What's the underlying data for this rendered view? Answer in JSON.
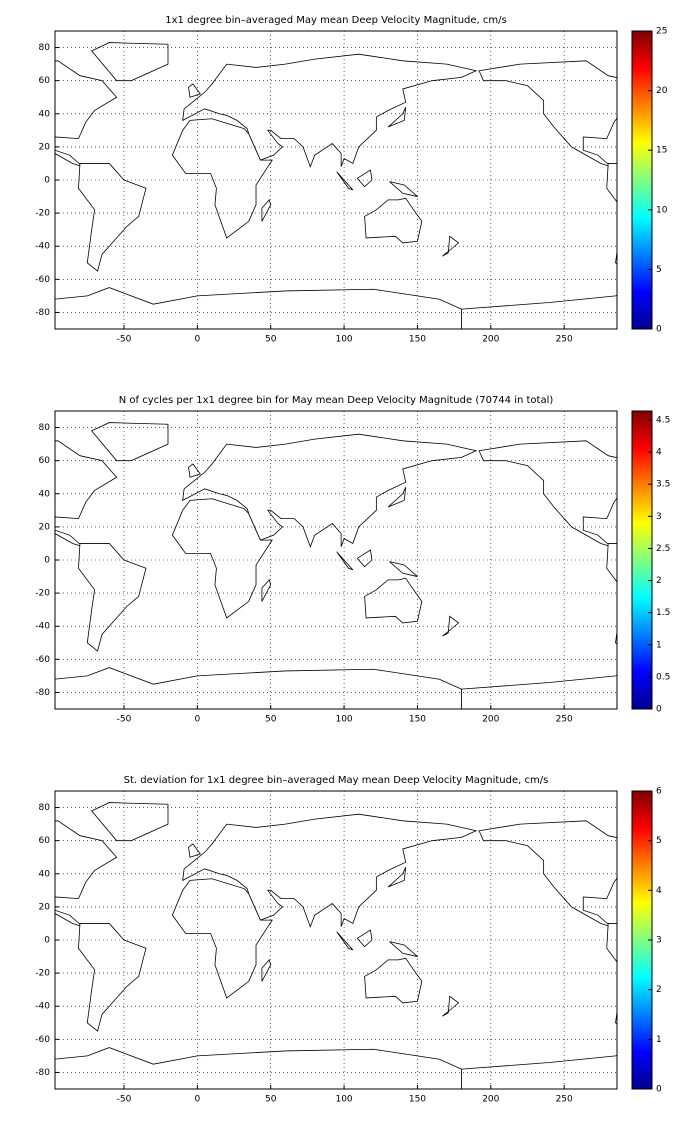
{
  "chart_data": [
    {
      "type": "heatmap",
      "title": "1x1 degree bin–averaged May mean Deep Velocity Magnitude, cm/s",
      "xlim": [
        -97,
        286
      ],
      "xticks": [
        -50,
        0,
        50,
        100,
        150,
        200,
        250
      ],
      "ylim": [
        -90,
        90
      ],
      "yticks": [
        -80,
        -60,
        -40,
        -20,
        0,
        20,
        40,
        60,
        80
      ],
      "grid": true,
      "colormap": "jet",
      "clim": [
        0,
        25
      ],
      "cticks": [
        0,
        5,
        10,
        15,
        20,
        25
      ]
    },
    {
      "type": "heatmap",
      "title": "N of cycles per 1x1 degree bin for May mean Deep Velocity Magnitude (70744 in total)",
      "xlim": [
        -97,
        286
      ],
      "xticks": [
        -50,
        0,
        50,
        100,
        150,
        200,
        250
      ],
      "ylim": [
        -90,
        90
      ],
      "yticks": [
        -80,
        -60,
        -40,
        -20,
        0,
        20,
        40,
        60,
        80
      ],
      "grid": true,
      "colormap": "jet",
      "clim": [
        0,
        4.64
      ],
      "cticks": [
        0,
        0.5,
        1,
        1.5,
        2,
        2.5,
        3,
        3.5,
        4,
        4.5
      ]
    },
    {
      "type": "heatmap",
      "title": "St. deviation for 1x1 degree bin–averaged May mean Deep Velocity Magnitude, cm/s",
      "xlim": [
        -97,
        286
      ],
      "xticks": [
        -50,
        0,
        50,
        100,
        150,
        200,
        250
      ],
      "ylim": [
        -90,
        90
      ],
      "yticks": [
        -80,
        -60,
        -40,
        -20,
        0,
        20,
        40,
        60,
        80
      ],
      "grid": true,
      "colormap": "jet",
      "clim": [
        0,
        6
      ],
      "cticks": [
        0,
        1,
        2,
        3,
        4,
        5,
        6
      ]
    }
  ]
}
